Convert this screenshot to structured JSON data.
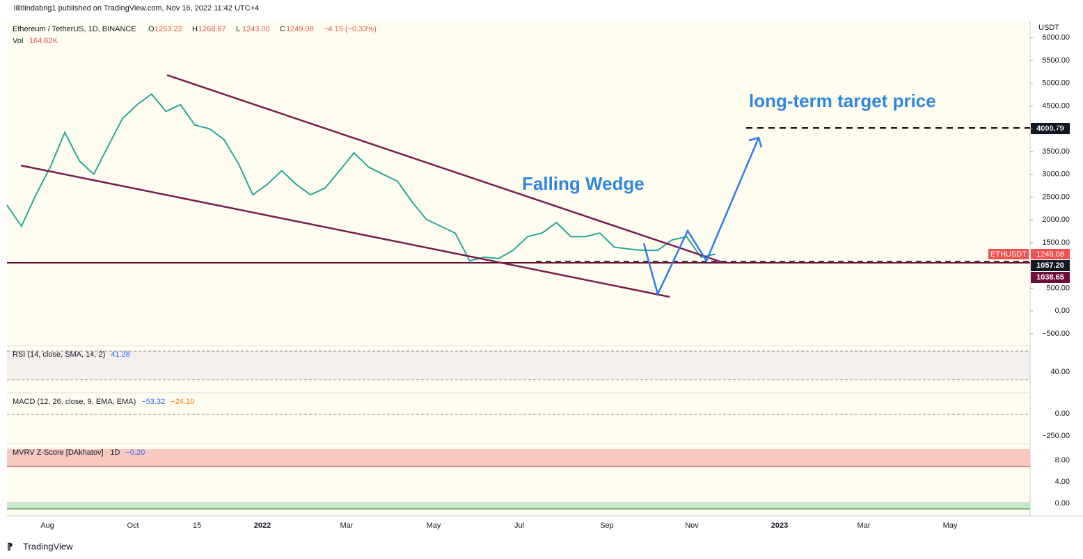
{
  "header": {
    "published": "lilitlindabrig1 published on TradingView.com, Nov 16, 2022 11:42 UTC+4",
    "footer": "TradingView"
  },
  "chart_data": {
    "type": "line",
    "title": "Ethereum / TetherUS, 1D, BINANCE",
    "legend_values": [
      {
        "key": "O",
        "text": "1253.22"
      },
      {
        "key": "H",
        "text": "1268.67"
      },
      {
        "key": "L",
        "text": "1243.00"
      },
      {
        "key": "C",
        "text": "1249.08"
      }
    ],
    "change": "−4.15 (−0.33%)",
    "volume": {
      "label": "Vol",
      "text": "164.62K"
    },
    "currency": "USDT",
    "x_ticks": [
      "Aug",
      "Oct",
      "15",
      "2022",
      "Mar",
      "May",
      "Jul",
      "Sep",
      "Nov",
      "2023",
      "Mar",
      "May"
    ],
    "values": [
      2320,
      1860,
      2550,
      3160,
      3920,
      3300,
      3000,
      3620,
      4230,
      4530,
      4760,
      4380,
      4530,
      4080,
      4000,
      3770,
      3240,
      2550,
      2780,
      3080,
      2780,
      2550,
      2700,
      3080,
      3470,
      3160,
      3000,
      2850,
      2400,
      2010,
      1860,
      1710,
      1100,
      1180,
      1150,
      1330,
      1630,
      1710,
      1940,
      1630,
      1630,
      1710,
      1400,
      1360,
      1330,
      1330,
      1560,
      1630,
      1180,
      1249.08
    ],
    "color": "#26a69a",
    "ylim": [
      -730,
      6370
    ],
    "yticks": [
      {
        "value": 6000,
        "label": "6000.00"
      },
      {
        "value": 5500,
        "label": "5500.00"
      },
      {
        "value": 5000,
        "label": "5000.00"
      },
      {
        "value": 4500,
        "label": "4500.00"
      },
      {
        "value": 4000,
        "label": "4000.00"
      },
      {
        "value": 3500,
        "label": "3500.00"
      },
      {
        "value": 3000,
        "label": "3000.00"
      },
      {
        "value": 2500,
        "label": "2500.00"
      },
      {
        "value": 2000,
        "label": "2000.00"
      },
      {
        "value": 1500,
        "label": "1500.00"
      },
      {
        "value": 500,
        "label": "500.00"
      },
      {
        "value": 0,
        "label": "0.00"
      },
      {
        "value": -500,
        "label": "−500.00"
      }
    ],
    "grid": false,
    "annotations": [
      "long-term target price",
      "Falling Wedge"
    ],
    "price_tags": {
      "symbol": "ETHUSDT",
      "last": "1249.08",
      "target": "4008.79",
      "support": "1057.20",
      "low": "1038.65"
    },
    "panes": [
      {
        "label": "RSI (14, close, SMA, 14, 2)",
        "readings": [
          "41.28"
        ],
        "ticks": [
          "40.00"
        ]
      },
      {
        "label": "MACD (12, 26, close, 9, EMA, EMA)",
        "readings": [
          "−53.32",
          "−24.10"
        ],
        "ticks": [
          "0.00",
          "−250.00"
        ]
      },
      {
        "label": "MVRV Z-Score [DAkhatov] · 1D",
        "readings": [
          "−0.20"
        ],
        "ticks": [
          "8.00",
          "4.00",
          "0.00"
        ]
      }
    ]
  }
}
